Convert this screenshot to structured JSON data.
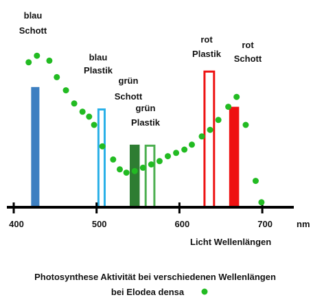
{
  "chart_data": {
    "type": "scatter",
    "xlabel": "Licht Wellenlängen",
    "x_unit": "nm",
    "x_ticks": [
      400,
      500,
      600,
      700
    ],
    "xlim": [
      390,
      730
    ],
    "caption_line1": "Photosynthese Aktivität bei verschiedenen Wellenlängen",
    "caption_line2": "bei Elodea densa",
    "legend_marker_color": "#22bb22",
    "series": [
      {
        "name": "bei Elodea densa",
        "color": "#22bb22",
        "points": [
          {
            "x": 418,
            "y": 88
          },
          {
            "x": 428,
            "y": 92
          },
          {
            "x": 443,
            "y": 89
          },
          {
            "x": 452,
            "y": 79
          },
          {
            "x": 463,
            "y": 71
          },
          {
            "x": 473,
            "y": 63
          },
          {
            "x": 483,
            "y": 58
          },
          {
            "x": 491,
            "y": 55
          },
          {
            "x": 497,
            "y": 50
          },
          {
            "x": 507,
            "y": 37
          },
          {
            "x": 520,
            "y": 29
          },
          {
            "x": 528,
            "y": 23
          },
          {
            "x": 536,
            "y": 21
          },
          {
            "x": 546,
            "y": 22
          },
          {
            "x": 556,
            "y": 24
          },
          {
            "x": 566,
            "y": 26
          },
          {
            "x": 576,
            "y": 28
          },
          {
            "x": 586,
            "y": 31
          },
          {
            "x": 596,
            "y": 33
          },
          {
            "x": 606,
            "y": 35
          },
          {
            "x": 615,
            "y": 38
          },
          {
            "x": 627,
            "y": 43
          },
          {
            "x": 637,
            "y": 47
          },
          {
            "x": 647,
            "y": 53
          },
          {
            "x": 659,
            "y": 61
          },
          {
            "x": 669,
            "y": 67
          },
          {
            "x": 680,
            "y": 50
          },
          {
            "x": 692,
            "y": 16
          },
          {
            "x": 699,
            "y": 3
          }
        ]
      }
    ],
    "filters": [
      {
        "label_line1": "blau",
        "label_line2": "Schott",
        "color": "#3d7fc1",
        "style": "solid",
        "wavelength_from": 421,
        "wavelength_to": 431,
        "height": 73
      },
      {
        "label_line1": "blau",
        "label_line2": "Plastik",
        "color": "#2ab0e8",
        "style": "outline",
        "wavelength_from": 501,
        "wavelength_to": 511,
        "height": 60
      },
      {
        "label_line1": "grün",
        "label_line2": "Schott",
        "color": "#2e7d32",
        "style": "solid",
        "wavelength_from": 540,
        "wavelength_to": 552,
        "height": 38
      },
      {
        "label_line1": "grün",
        "label_line2": "Plastik",
        "color": "#4caf50",
        "style": "outline",
        "wavelength_from": 558,
        "wavelength_to": 571,
        "height": 38
      },
      {
        "label_line1": "rot",
        "label_line2": "Plastik",
        "color": "#ee1111",
        "style": "outline",
        "wavelength_from": 629,
        "wavelength_to": 643,
        "height": 83
      },
      {
        "label_line1": "rot",
        "label_line2": "Schott",
        "color": "#ee1111",
        "style": "solid",
        "wavelength_from": 660,
        "wavelength_to": 672,
        "height": 61
      }
    ]
  }
}
